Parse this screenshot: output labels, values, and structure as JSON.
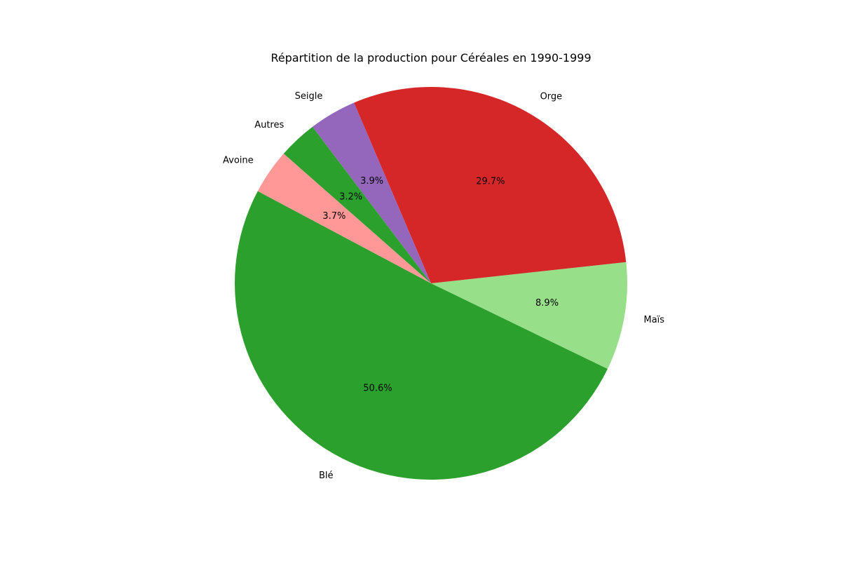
{
  "chart_data": {
    "type": "pie",
    "title": "Répartition de la production pour Céréales en 1990-1999",
    "start_angle_deg": 152,
    "direction": "counterclockwise",
    "slices": [
      {
        "label": "Blé",
        "value": 50.6,
        "pct_label": "50.6%",
        "color": "#2ca02c"
      },
      {
        "label": "Maïs",
        "value": 8.9,
        "pct_label": "8.9%",
        "color": "#98df8a"
      },
      {
        "label": "Orge",
        "value": 29.7,
        "pct_label": "29.7%",
        "color": "#d62728"
      },
      {
        "label": "Seigle",
        "value": 3.9,
        "pct_label": "3.9%",
        "color": "#9467bd"
      },
      {
        "label": "Autres",
        "value": 3.2,
        "pct_label": "3.2%",
        "color": "#2ca02c"
      },
      {
        "label": "Avoine",
        "value": 3.7,
        "pct_label": "3.7%",
        "color": "#ff9896"
      }
    ]
  }
}
